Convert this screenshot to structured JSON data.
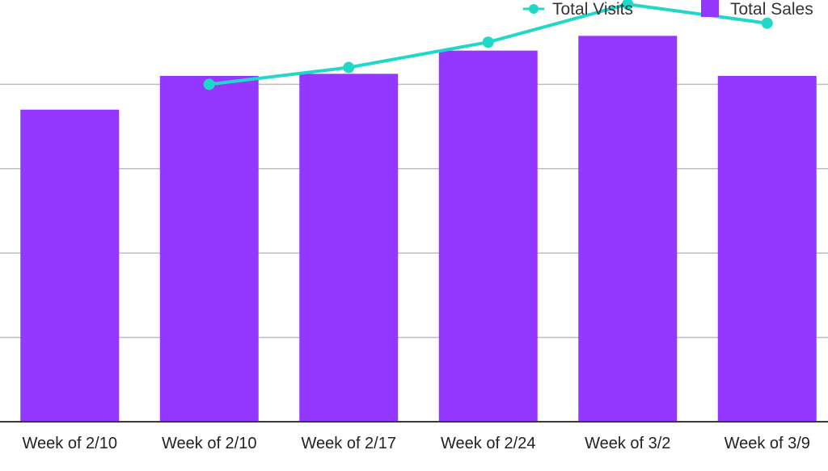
{
  "chart_data": {
    "type": "bar",
    "title": "",
    "xlabel": "",
    "ylabel": "",
    "categories": [
      "Week of 2/10",
      "Week of 2/10",
      "Week of 2/17",
      "Week of 2/24",
      "Week of 3/2",
      "Week of 3/9"
    ],
    "ylim": [
      0,
      100
    ],
    "grid": true,
    "legend_position": "top-right",
    "series": [
      {
        "name": "Total Sales",
        "type": "bar",
        "color": "#9438FF",
        "values": [
          74,
          82,
          82.5,
          88,
          91.5,
          82
        ]
      },
      {
        "name": "Total Visits",
        "type": "line",
        "color": "#20D8C8",
        "values": [
          null,
          80,
          84,
          90,
          99,
          94.5
        ]
      }
    ]
  }
}
